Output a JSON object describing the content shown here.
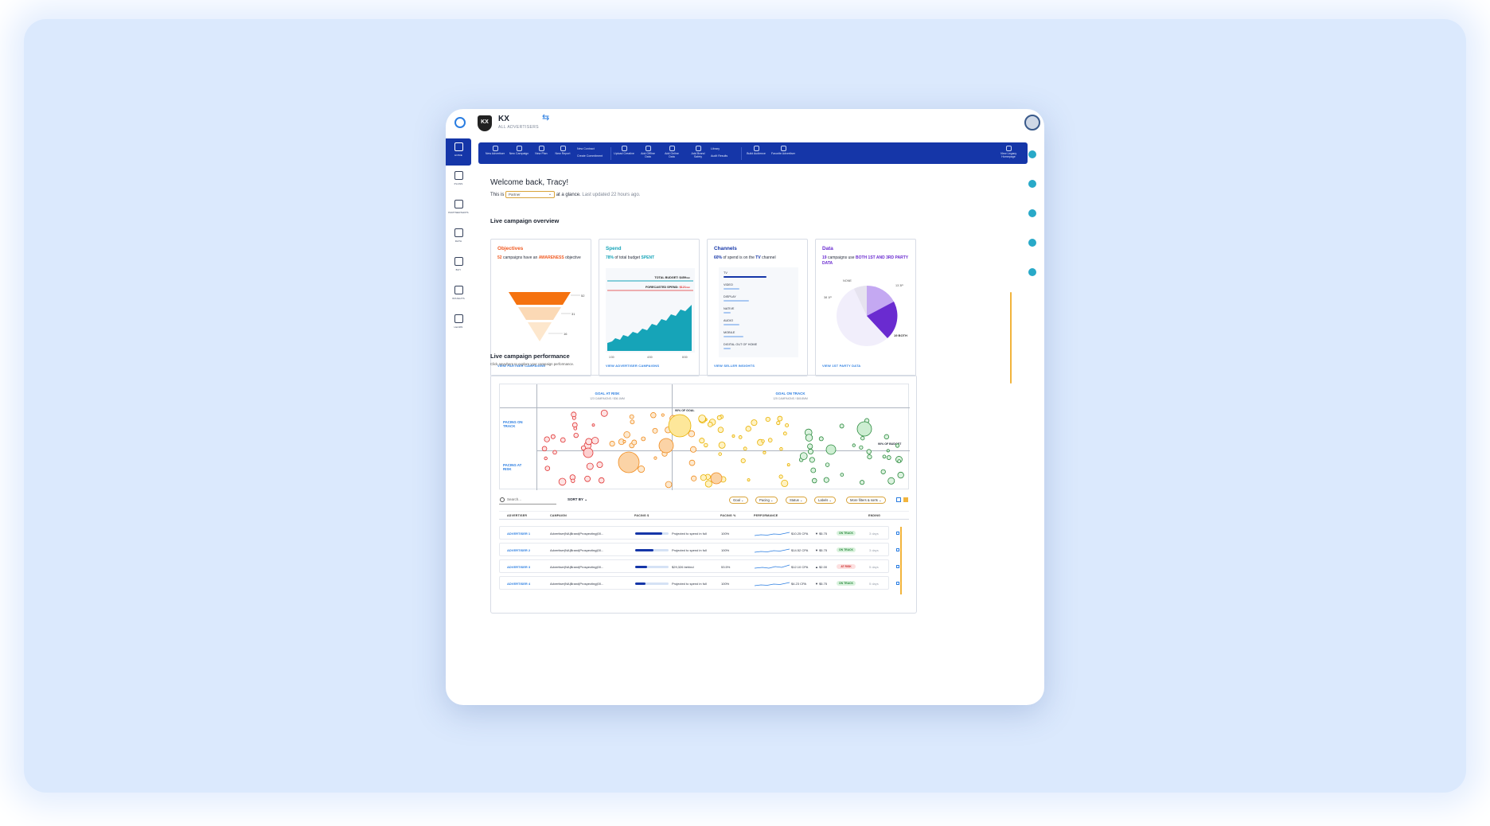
{
  "header": {
    "brand": "KX",
    "brand_sub": "ALL ADVERTISERS",
    "brand_badge": "KX"
  },
  "leftnav": [
    {
      "label": "HOME"
    },
    {
      "label": "PLANS"
    },
    {
      "label": "PARTNERSHIPS"
    },
    {
      "label": "DATA"
    },
    {
      "label": "BUY"
    },
    {
      "label": "INSIGHTS"
    },
    {
      "label": "LEARN"
    }
  ],
  "toolbar": {
    "items": [
      {
        "label": "New Advertiser"
      },
      {
        "label": "New Campaign"
      },
      {
        "label": "New Plan"
      },
      {
        "label": "New Report"
      },
      {
        "label": "Upload Creative"
      },
      {
        "label": "Add Offline Data"
      },
      {
        "label": "Add Online Data"
      },
      {
        "label": "Add Brand Safety"
      },
      {
        "label": "Build Audience"
      },
      {
        "label": "Favorite Advertiser"
      }
    ],
    "split_a": [
      "New Contract",
      "Create Commitment"
    ],
    "split_b": [
      "Library",
      "Audit Results"
    ],
    "legacy": "View Legacy Homepage"
  },
  "welcome": {
    "title": "Welcome back, Tracy!",
    "prefix": "This is",
    "selected": "Partner",
    "suffix": "at a glance.",
    "updated": "Last updated 22 hours ago."
  },
  "overview": {
    "title": "Live campaign overview",
    "objectives": {
      "title": "Objectives",
      "count": "52",
      "text_a": "campaigns have an",
      "highlight": "AWARENESS",
      "text_b": "objective",
      "funnel_labels": [
        "52",
        "31",
        "16"
      ],
      "link": "VIEW PARTNER CAMPAIGNS"
    },
    "spend": {
      "title": "Spend",
      "pct": "78%",
      "text_a": "of total budget",
      "highlight": "SPENT",
      "total_budget": "TOTAL BUDGET: $459",
      "total_unit": "mm",
      "forecast": "FORECASTED SPEND:",
      "forecast_val": "$121",
      "forecast_unit": "mm",
      "x_ticks": [
        "1/30",
        "4/30",
        "8/30"
      ],
      "link": "VIEW ADVERTISER CAMPAIGNS"
    },
    "channels": {
      "title": "Channels",
      "pct": "60%",
      "text_a": "of spend is on the",
      "highlight": "TV",
      "text_b": "channel",
      "rows": [
        {
          "name": "TV",
          "share": 0.6
        },
        {
          "name": "VIDEO",
          "share": 0.22
        },
        {
          "name": "DISPLAY",
          "share": 0.36
        },
        {
          "name": "NATIVE",
          "share": 0.1
        },
        {
          "name": "AUDIO",
          "share": 0.22
        },
        {
          "name": "MOBILE",
          "share": 0.28
        },
        {
          "name": "DIGITAL OUT OF HOME",
          "share": 0.1
        }
      ],
      "link": "VIEW SELLER INSIGHTS"
    },
    "data": {
      "title": "Data",
      "count": "19",
      "text_a": "campaigns use",
      "highlight": "BOTH 1ST AND 3RD PARTY DATA",
      "pie_labels": {
        "none": "NONE",
        "third": "13 3P",
        "first": "38 1P",
        "both": "19 BOTH"
      },
      "link": "VIEW 1ST PARTY DATA"
    }
  },
  "performance": {
    "title": "Live campaign performance",
    "subtitle": "Click anywhere to explore your campaign performance.",
    "matrix": {
      "col_left": "GOAL AT RISK",
      "col_left_sub": "123 CAMPAIGNS / $36.1MM",
      "col_right": "GOAL ON TRACK",
      "col_right_sub": "125 CAMPAIGNS / $45.8MM",
      "row_top": "PACING ON TRACK",
      "row_bottom": "PACING AT RISK",
      "ann_goal": "90% OF GOAL",
      "ann_budget": "90% OF BUDGET"
    },
    "search_placeholder": "Search...",
    "sort_by": "SORT BY",
    "filters": [
      "Goal",
      "Pacing",
      "Status",
      "Labels",
      "More filters & sorts"
    ],
    "columns": [
      "ADVERTISER",
      "CAMPAIGN",
      "PACING $",
      "PACING %",
      "PERFORMANCE",
      "ENDING"
    ],
    "rows": [
      {
        "advertiser": "ADVERTISER 1",
        "campaign": "Advertiser|NA|Brand|Prospecting|00...",
        "pacing_text": "Projected to spend in full",
        "pacing_fill": 0.8,
        "pct": "100%",
        "cpa": "$10.25 CPA",
        "delta": "▼ $5.75",
        "status": "ON TRACK",
        "ok": true,
        "ending": "3 days"
      },
      {
        "advertiser": "ADVERTISER 2",
        "campaign": "Advertiser|NA|Brand|Prospecting|00...",
        "pacing_text": "Projected to spend in full",
        "pacing_fill": 0.55,
        "pct": "100%",
        "cpa": "$14.52 CPA",
        "delta": "▼ $5.75",
        "status": "ON TRACK",
        "ok": true,
        "ending": "3 days"
      },
      {
        "advertiser": "ADVERTISER 3",
        "campaign": "Advertiser|NA|Brand|Prospecting|00...",
        "pacing_text": "$29,326 behind",
        "pacing_fill": 0.35,
        "pct": "53.5%",
        "cpa": "$12.10 CPA",
        "delta": "▲ $2.00",
        "status": "AT RISK",
        "ok": false,
        "ending": "5 days"
      },
      {
        "advertiser": "ADVERTISER 4",
        "campaign": "Advertiser|NA|Brand|Prospecting|00...",
        "pacing_text": "Projected to spend in full",
        "pacing_fill": 0.3,
        "pct": "100%",
        "cpa": "$4.23 CPA",
        "delta": "▼ $5.75",
        "status": "ON TRACK",
        "ok": true,
        "ending": "5 days"
      }
    ]
  },
  "colors": {
    "primary": "#1536a8",
    "accent_blue": "#2a7de1",
    "orange": "#f05a22",
    "teal": "#16a4b8",
    "purple": "#6a2bd0",
    "yellow": "#f2b43c"
  }
}
